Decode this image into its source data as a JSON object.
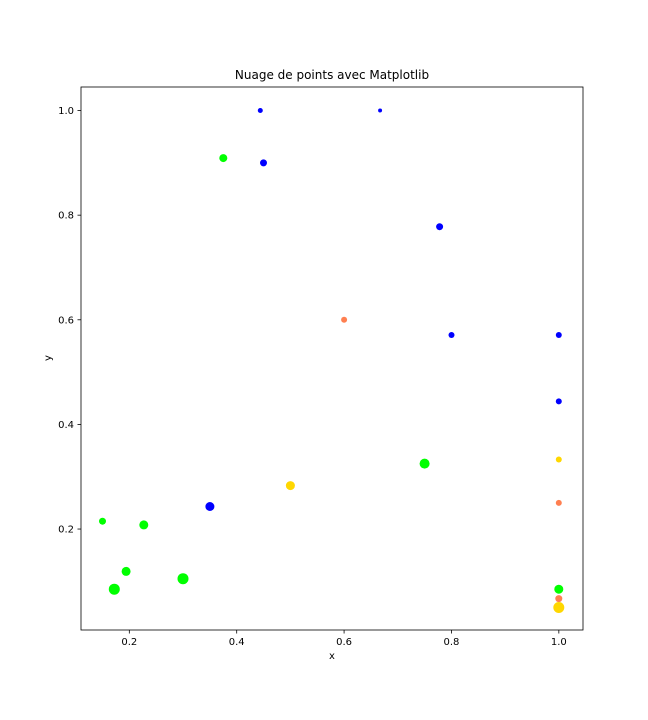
{
  "chart_data": {
    "type": "scatter",
    "title": "Nuage de points avec Matplotlib",
    "xlabel": "x",
    "ylabel": "y",
    "xlim": [
      0.11,
      1.045
    ],
    "ylim": [
      0.007,
      1.045
    ],
    "xticks": [
      0.2,
      0.4,
      0.6,
      0.8,
      1.0
    ],
    "xtick_labels": [
      "0.2",
      "0.4",
      "0.6",
      "0.8",
      "1.0"
    ],
    "yticks": [
      0.2,
      0.4,
      0.6,
      0.8,
      1.0
    ],
    "ytick_labels": [
      "0.2",
      "0.4",
      "0.6",
      "0.8",
      "1.0"
    ],
    "grid": false,
    "legend": "none",
    "points": [
      {
        "x": 0.444,
        "y": 1.0,
        "color": "#0000ff",
        "size": 2.5
      },
      {
        "x": 0.667,
        "y": 1.0,
        "color": "#0000ff",
        "size": 2
      },
      {
        "x": 0.45,
        "y": 0.9,
        "color": "#0000ff",
        "size": 3.5
      },
      {
        "x": 0.778,
        "y": 0.778,
        "color": "#0000ff",
        "size": 3.5
      },
      {
        "x": 0.8,
        "y": 0.571,
        "color": "#0000ff",
        "size": 3
      },
      {
        "x": 1.0,
        "y": 0.571,
        "color": "#0000ff",
        "size": 3
      },
      {
        "x": 1.0,
        "y": 0.444,
        "color": "#0000ff",
        "size": 3
      },
      {
        "x": 0.35,
        "y": 0.243,
        "color": "#0000ff",
        "size": 4.5
      },
      {
        "x": 0.375,
        "y": 0.909,
        "color": "#00ff00",
        "size": 4
      },
      {
        "x": 0.75,
        "y": 0.325,
        "color": "#00ff00",
        "size": 5
      },
      {
        "x": 0.15,
        "y": 0.215,
        "color": "#00ff00",
        "size": 3.5
      },
      {
        "x": 0.227,
        "y": 0.208,
        "color": "#00ff00",
        "size": 4.5
      },
      {
        "x": 0.194,
        "y": 0.119,
        "color": "#00ff00",
        "size": 4.5
      },
      {
        "x": 0.172,
        "y": 0.085,
        "color": "#00ff00",
        "size": 5.5
      },
      {
        "x": 0.3,
        "y": 0.105,
        "color": "#00ff00",
        "size": 5.5
      },
      {
        "x": 1.0,
        "y": 0.085,
        "color": "#00ff00",
        "size": 4.5
      },
      {
        "x": 0.6,
        "y": 0.6,
        "color": "#ff7f50",
        "size": 3
      },
      {
        "x": 1.0,
        "y": 0.25,
        "color": "#ff7f50",
        "size": 3
      },
      {
        "x": 1.0,
        "y": 0.067,
        "color": "#ff7f50",
        "size": 3.5
      },
      {
        "x": 0.5,
        "y": 0.283,
        "color": "#ffd700",
        "size": 4.5
      },
      {
        "x": 1.0,
        "y": 0.333,
        "color": "#ffd700",
        "size": 3
      },
      {
        "x": 1.0,
        "y": 0.05,
        "color": "#ffd700",
        "size": 5.5
      }
    ]
  }
}
